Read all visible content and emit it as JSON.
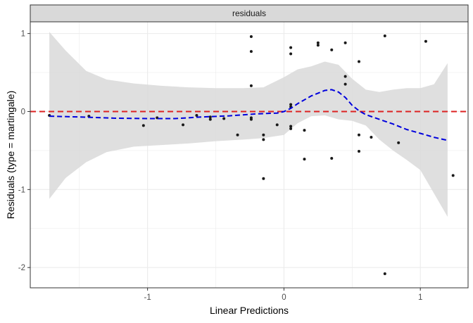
{
  "chart_data": {
    "type": "scatter",
    "panel_title": "residuals",
    "xlabel": "Linear Predictions",
    "ylabel": "Residuals (type = martingale)",
    "xlim": [
      -1.86,
      1.35
    ],
    "ylim": [
      -2.26,
      1.15
    ],
    "x_ticks": [
      {
        "value": -1,
        "label": "-1"
      },
      {
        "value": 0,
        "label": "0"
      },
      {
        "value": 1,
        "label": "1"
      }
    ],
    "y_ticks": [
      {
        "value": -2,
        "label": "-2"
      },
      {
        "value": -1,
        "label": "-1"
      },
      {
        "value": 0,
        "label": "0"
      },
      {
        "value": 1,
        "label": "1"
      }
    ],
    "grid": true,
    "reference_line": {
      "y": 0,
      "color": "#dd2222",
      "style": "dashed"
    },
    "colors": {
      "points": "#1a1a1a",
      "smooth": "#0000dd",
      "ribbon": "#d9d9d9",
      "strip_fill": "#d9d9d9",
      "grid": "#ebebeb"
    },
    "points": [
      {
        "x": -1.72,
        "y": -0.05
      },
      {
        "x": -1.43,
        "y": -0.06
      },
      {
        "x": -1.03,
        "y": -0.18
      },
      {
        "x": -0.93,
        "y": -0.08
      },
      {
        "x": -0.74,
        "y": -0.17
      },
      {
        "x": -0.64,
        "y": -0.05
      },
      {
        "x": -0.54,
        "y": -0.1
      },
      {
        "x": -0.54,
        "y": -0.07
      },
      {
        "x": -0.44,
        "y": -0.09
      },
      {
        "x": -0.34,
        "y": -0.3
      },
      {
        "x": -0.24,
        "y": 0.96
      },
      {
        "x": -0.24,
        "y": 0.77
      },
      {
        "x": -0.24,
        "y": 0.33
      },
      {
        "x": -0.24,
        "y": -0.08
      },
      {
        "x": -0.24,
        "y": -0.1
      },
      {
        "x": -0.15,
        "y": -0.3
      },
      {
        "x": -0.15,
        "y": -0.36
      },
      {
        "x": -0.15,
        "y": -0.86
      },
      {
        "x": -0.05,
        "y": -0.17
      },
      {
        "x": 0.05,
        "y": 0.82
      },
      {
        "x": 0.05,
        "y": 0.74
      },
      {
        "x": 0.05,
        "y": 0.09
      },
      {
        "x": 0.05,
        "y": 0.06
      },
      {
        "x": 0.05,
        "y": -0.19
      },
      {
        "x": 0.05,
        "y": -0.22
      },
      {
        "x": 0.15,
        "y": -0.24
      },
      {
        "x": 0.15,
        "y": -0.61
      },
      {
        "x": 0.25,
        "y": 0.88
      },
      {
        "x": 0.25,
        "y": 0.85
      },
      {
        "x": 0.35,
        "y": 0.79
      },
      {
        "x": 0.35,
        "y": -0.6
      },
      {
        "x": 0.45,
        "y": 0.88
      },
      {
        "x": 0.45,
        "y": 0.45
      },
      {
        "x": 0.45,
        "y": 0.35
      },
      {
        "x": 0.55,
        "y": 0.64
      },
      {
        "x": 0.55,
        "y": -0.3
      },
      {
        "x": 0.55,
        "y": -0.51
      },
      {
        "x": 0.64,
        "y": -0.33
      },
      {
        "x": 0.74,
        "y": 0.97
      },
      {
        "x": 0.74,
        "y": -2.08
      },
      {
        "x": 0.84,
        "y": -0.4
      },
      {
        "x": 1.04,
        "y": 0.9
      },
      {
        "x": 1.24,
        "y": -0.82
      }
    ],
    "smooth": [
      {
        "x": -1.72,
        "y": -0.06
      },
      {
        "x": -1.5,
        "y": -0.07
      },
      {
        "x": -1.25,
        "y": -0.085
      },
      {
        "x": -1.0,
        "y": -0.09
      },
      {
        "x": -0.8,
        "y": -0.09
      },
      {
        "x": -0.6,
        "y": -0.07
      },
      {
        "x": -0.4,
        "y": -0.055
      },
      {
        "x": -0.2,
        "y": -0.03
      },
      {
        "x": -0.05,
        "y": -0.02
      },
      {
        "x": 0.0,
        "y": 0.0
      },
      {
        "x": 0.05,
        "y": 0.04
      },
      {
        "x": 0.1,
        "y": 0.1
      },
      {
        "x": 0.2,
        "y": 0.2
      },
      {
        "x": 0.3,
        "y": 0.27
      },
      {
        "x": 0.35,
        "y": 0.28
      },
      {
        "x": 0.4,
        "y": 0.25
      },
      {
        "x": 0.45,
        "y": 0.18
      },
      {
        "x": 0.5,
        "y": 0.08
      },
      {
        "x": 0.55,
        "y": 0.01
      },
      {
        "x": 0.6,
        "y": -0.04
      },
      {
        "x": 0.7,
        "y": -0.1
      },
      {
        "x": 0.8,
        "y": -0.16
      },
      {
        "x": 0.9,
        "y": -0.23
      },
      {
        "x": 1.0,
        "y": -0.28
      },
      {
        "x": 1.1,
        "y": -0.33
      },
      {
        "x": 1.2,
        "y": -0.37
      }
    ],
    "ribbon": [
      {
        "x": -1.72,
        "lo": -1.12,
        "hi": 1.02
      },
      {
        "x": -1.6,
        "lo": -0.85,
        "hi": 0.78
      },
      {
        "x": -1.45,
        "lo": -0.65,
        "hi": 0.52
      },
      {
        "x": -1.3,
        "lo": -0.52,
        "hi": 0.41
      },
      {
        "x": -1.1,
        "lo": -0.45,
        "hi": 0.36
      },
      {
        "x": -0.9,
        "lo": -0.43,
        "hi": 0.33
      },
      {
        "x": -0.7,
        "lo": -0.41,
        "hi": 0.31
      },
      {
        "x": -0.5,
        "lo": -0.38,
        "hi": 0.3
      },
      {
        "x": -0.3,
        "lo": -0.36,
        "hi": 0.3
      },
      {
        "x": -0.15,
        "lo": -0.34,
        "hi": 0.31
      },
      {
        "x": 0.0,
        "lo": -0.3,
        "hi": 0.44
      },
      {
        "x": 0.1,
        "lo": -0.15,
        "hi": 0.54
      },
      {
        "x": 0.2,
        "lo": -0.06,
        "hi": 0.58
      },
      {
        "x": 0.3,
        "lo": -0.05,
        "hi": 0.64
      },
      {
        "x": 0.4,
        "lo": -0.1,
        "hi": 0.6
      },
      {
        "x": 0.5,
        "lo": -0.12,
        "hi": 0.42
      },
      {
        "x": 0.6,
        "lo": -0.18,
        "hi": 0.28
      },
      {
        "x": 0.7,
        "lo": -0.36,
        "hi": 0.25
      },
      {
        "x": 0.8,
        "lo": -0.5,
        "hi": 0.28
      },
      {
        "x": 0.9,
        "lo": -0.62,
        "hi": 0.3
      },
      {
        "x": 1.0,
        "lo": -0.75,
        "hi": 0.3
      },
      {
        "x": 1.1,
        "lo": -1.05,
        "hi": 0.35
      },
      {
        "x": 1.2,
        "lo": -1.35,
        "hi": 0.62
      }
    ]
  }
}
